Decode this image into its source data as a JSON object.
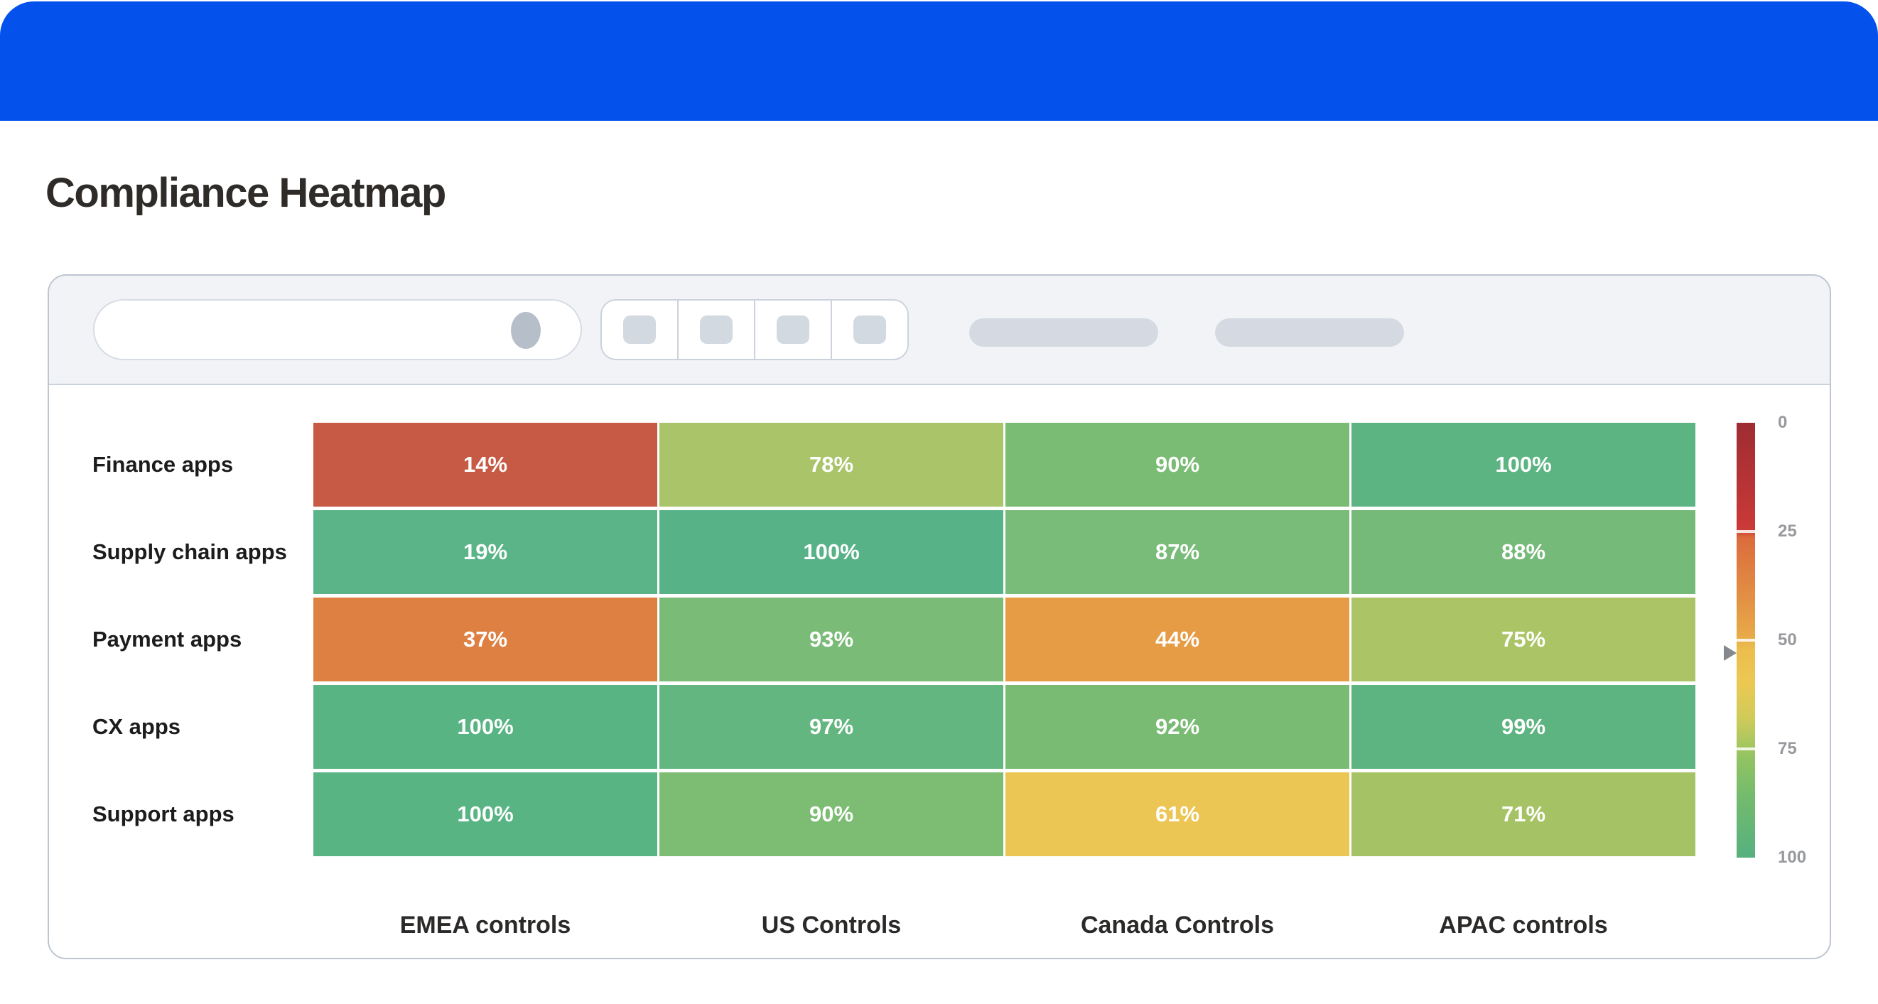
{
  "header": {
    "color": "#0551ec"
  },
  "page": {
    "title": "Compliance Heatmap"
  },
  "card": {
    "toolbar": {
      "search_value": "",
      "search_placeholder": "",
      "segment_count": 4
    }
  },
  "chart_data": {
    "type": "heatmap",
    "title": "Compliance Heatmap",
    "rows": [
      "Finance apps",
      "Supply chain apps",
      "Payment apps",
      "CX apps",
      "Support apps"
    ],
    "columns": [
      "EMEA controls",
      "US Controls",
      "Canada Controls",
      "APAC controls"
    ],
    "values": [
      [
        14,
        78,
        90,
        100
      ],
      [
        19,
        100,
        87,
        88
      ],
      [
        37,
        93,
        44,
        75
      ],
      [
        100,
        97,
        92,
        99
      ],
      [
        100,
        90,
        61,
        71
      ]
    ],
    "cell_labels": [
      [
        "14%",
        "78%",
        "90%",
        "100%"
      ],
      [
        "19%",
        "100%",
        "87%",
        "88%"
      ],
      [
        "37%",
        "93%",
        "44%",
        "75%"
      ],
      [
        "100%",
        "97%",
        "92%",
        "99%"
      ],
      [
        "100%",
        "90%",
        "61%",
        "71%"
      ]
    ],
    "cell_colors": [
      [
        "#c65a44",
        "#a9c469",
        "#7bbc74",
        "#5cb482"
      ],
      [
        "#5ab488",
        "#58b287",
        "#79bb78",
        "#76ba79"
      ],
      [
        "#dd8042",
        "#7abb78",
        "#e69c45",
        "#abc566"
      ],
      [
        "#59b483",
        "#63b680",
        "#7abb74",
        "#5db481"
      ],
      [
        "#58b483",
        "#7cbc73",
        "#ecc654",
        "#a5c365"
      ]
    ],
    "legend": {
      "orientation": "vertical",
      "scale_min": 0,
      "scale_max": 100,
      "ticks": [
        0,
        25,
        50,
        75,
        100
      ],
      "tick_labels": [
        "0",
        "25",
        "50",
        "75",
        "100"
      ],
      "pointer_value": 53,
      "gradient_stops": [
        {
          "pos": 0,
          "color": "#9e2c32"
        },
        {
          "pos": 0.2,
          "color": "#c23737"
        },
        {
          "pos": 0.245,
          "color": "#cb3a37"
        },
        {
          "pos": 0.265,
          "color": "#dc6c3d"
        },
        {
          "pos": 0.4,
          "color": "#e28f44"
        },
        {
          "pos": 0.49,
          "color": "#e8a948"
        },
        {
          "pos": 0.52,
          "color": "#ebbd4d"
        },
        {
          "pos": 0.6,
          "color": "#ecc853"
        },
        {
          "pos": 0.68,
          "color": "#cfcb59"
        },
        {
          "pos": 0.73,
          "color": "#adc75f"
        },
        {
          "pos": 0.77,
          "color": "#93c362"
        },
        {
          "pos": 0.86,
          "color": "#74bb6d"
        },
        {
          "pos": 1,
          "color": "#55b07f"
        }
      ]
    }
  }
}
